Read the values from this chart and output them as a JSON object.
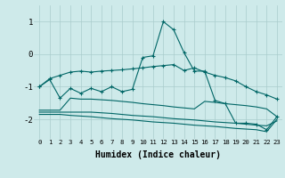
{
  "bg_color": "#ceeaea",
  "grid_color": "#aacccc",
  "line_color": "#006666",
  "xlabel": "Humidex (Indice chaleur)",
  "xlim": [
    -0.5,
    23.5
  ],
  "ylim": [
    -2.6,
    1.5
  ],
  "yticks": [
    -2,
    -1,
    0,
    1
  ],
  "x": [
    0,
    1,
    2,
    3,
    4,
    5,
    6,
    7,
    8,
    9,
    10,
    11,
    12,
    13,
    14,
    15,
    16,
    17,
    18,
    19,
    20,
    21,
    22,
    23
  ],
  "line1_y": [
    -1.0,
    -0.75,
    -0.65,
    -0.55,
    -0.52,
    -0.55,
    -0.52,
    -0.5,
    -0.48,
    -0.45,
    -0.42,
    -0.38,
    -0.35,
    -0.32,
    -0.5,
    -0.42,
    -0.55,
    -0.65,
    -0.72,
    -0.82,
    -1.0,
    -1.15,
    -1.25,
    -1.38
  ],
  "line2_y": [
    -1.0,
    -0.78,
    -1.35,
    -1.05,
    -1.2,
    -1.05,
    -1.15,
    -1.0,
    -1.15,
    -1.08,
    -0.1,
    -0.05,
    1.0,
    0.75,
    0.05,
    -0.52,
    -0.52,
    -1.42,
    -1.52,
    -2.12,
    -2.12,
    -2.15,
    -2.32,
    -1.92
  ],
  "line3_y": [
    -1.72,
    -1.72,
    -1.72,
    -1.35,
    -1.38,
    -1.38,
    -1.4,
    -1.42,
    -1.45,
    -1.48,
    -1.52,
    -1.55,
    -1.58,
    -1.62,
    -1.65,
    -1.68,
    -1.45,
    -1.48,
    -1.52,
    -1.55,
    -1.58,
    -1.62,
    -1.68,
    -1.92
  ],
  "line4_y": [
    -1.78,
    -1.78,
    -1.78,
    -1.78,
    -1.78,
    -1.78,
    -1.8,
    -1.82,
    -1.85,
    -1.88,
    -1.9,
    -1.92,
    -1.95,
    -1.98,
    -2.0,
    -2.02,
    -2.05,
    -2.08,
    -2.1,
    -2.12,
    -2.15,
    -2.18,
    -2.2,
    -2.05
  ],
  "line5_y": [
    -1.85,
    -1.85,
    -1.85,
    -1.88,
    -1.9,
    -1.92,
    -1.95,
    -1.98,
    -2.0,
    -2.02,
    -2.05,
    -2.08,
    -2.1,
    -2.12,
    -2.15,
    -2.18,
    -2.2,
    -2.22,
    -2.25,
    -2.28,
    -2.3,
    -2.32,
    -2.38,
    -2.0
  ]
}
